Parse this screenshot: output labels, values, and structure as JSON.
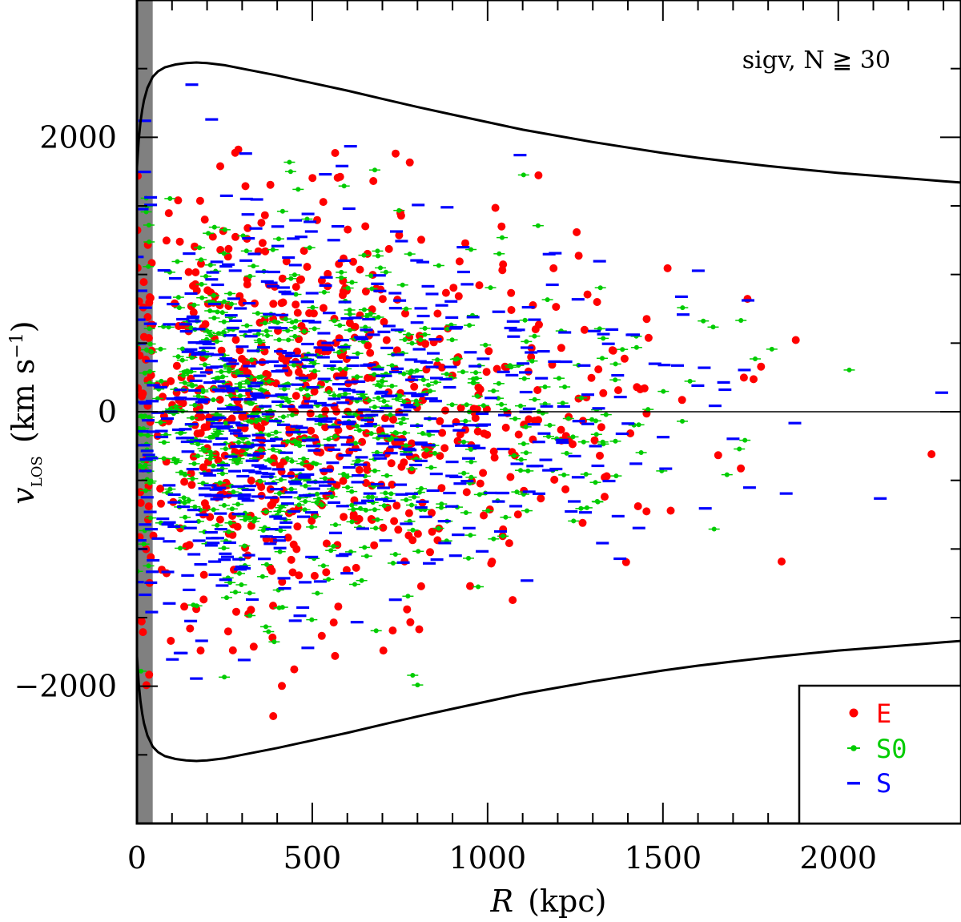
{
  "chart_data": {
    "type": "scatter",
    "annotation": "sigv, N ≧ 30",
    "xlabel": {
      "var": "R",
      "unit": "(kpc)"
    },
    "ylabel": {
      "var": "v",
      "sub": "LOS",
      "unit": "(km s",
      "sup": "−1",
      "close": ")"
    },
    "xlim": [
      0,
      2350
    ],
    "ylim": [
      -3000,
      3000
    ],
    "x_ticks": [
      0,
      500,
      1000,
      1500,
      2000
    ],
    "y_ticks": [
      -2000,
      0,
      2000
    ],
    "x_tick_labels": [
      "0",
      "500",
      "1000",
      "1500",
      "2000"
    ],
    "y_tick_labels": [
      "−2000",
      "0",
      "2000"
    ],
    "x_minor_step": 100,
    "y_minor_step": 500,
    "excluded_band": [
      0,
      45
    ],
    "zero_line": 0,
    "envelope": {
      "r": [
        0,
        5,
        10,
        15,
        20,
        30,
        45,
        60,
        80,
        110,
        140,
        170,
        200,
        250,
        300,
        400,
        500,
        600,
        700,
        800,
        900,
        1000,
        1100,
        1200,
        1300,
        1400,
        1500,
        1600,
        1700,
        1800,
        1900,
        2000,
        2100,
        2200,
        2300,
        2350
      ],
      "v": [
        1780,
        1980,
        2110,
        2200,
        2270,
        2360,
        2440,
        2480,
        2510,
        2530,
        2540,
        2545,
        2540,
        2525,
        2500,
        2450,
        2395,
        2340,
        2280,
        2220,
        2165,
        2110,
        2055,
        2010,
        1965,
        1925,
        1885,
        1850,
        1820,
        1790,
        1765,
        1740,
        1720,
        1700,
        1680,
        1670
      ]
    },
    "series": [
      {
        "name": "E",
        "marker": "circle",
        "color": "#ff0000",
        "count": 700,
        "spread": 850
      },
      {
        "name": "S0",
        "marker": "diamond",
        "color": "#00cc00",
        "count": 750,
        "spread": 760
      },
      {
        "name": "S",
        "marker": "dash",
        "color": "#0000ff",
        "count": 700,
        "spread": 820
      }
    ]
  }
}
